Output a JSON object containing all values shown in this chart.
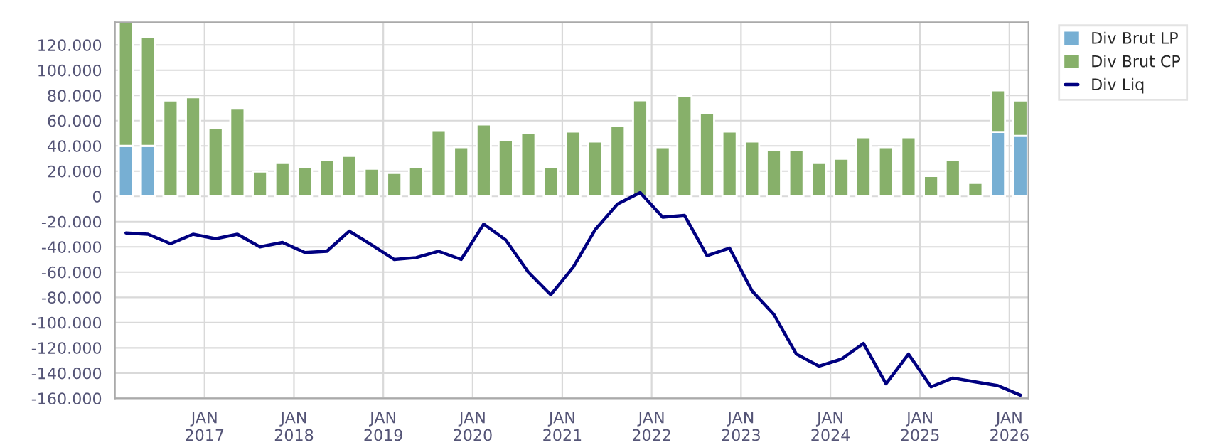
{
  "chart_data": {
    "type": "bar",
    "stacked": true,
    "x": [
      "2016-02-15",
      "2016-05-15",
      "2016-08-15",
      "2016-11-15",
      "2017-02-15",
      "2017-05-15",
      "2017-08-15",
      "2017-11-15",
      "2018-02-15",
      "2018-05-15",
      "2018-08-15",
      "2018-11-15",
      "2019-02-15",
      "2019-05-15",
      "2019-08-15",
      "2019-11-15",
      "2020-02-15",
      "2020-05-15",
      "2020-08-15",
      "2020-11-15",
      "2021-02-15",
      "2021-05-15",
      "2021-08-15",
      "2021-11-15",
      "2022-02-15",
      "2022-05-15",
      "2022-08-15",
      "2022-11-15",
      "2023-02-15",
      "2023-05-15",
      "2023-08-15",
      "2023-11-15",
      "2024-02-15",
      "2024-05-15",
      "2024-08-15",
      "2024-11-15",
      "2025-02-15",
      "2025-05-15",
      "2025-08-15",
      "2025-11-15",
      "2026-02-15"
    ],
    "series": [
      {
        "name": "Div Brut LP",
        "color": "#77afd3",
        "values": [
          40000,
          40000,
          0,
          0,
          0,
          0,
          0,
          0,
          0,
          0,
          0,
          0,
          0,
          0,
          0,
          0,
          0,
          0,
          0,
          0,
          0,
          0,
          0,
          0,
          0,
          0,
          0,
          0,
          0,
          0,
          0,
          0,
          0,
          0,
          0,
          0,
          0,
          0,
          0,
          51000,
          48000
        ]
      },
      {
        "name": "Div Brut CP",
        "color": "#87b06a",
        "values": [
          98000,
          86000,
          76000,
          78500,
          54000,
          69500,
          19600,
          26400,
          23000,
          28700,
          32000,
          21900,
          18500,
          23000,
          52500,
          38900,
          57000,
          44500,
          50200,
          23000,
          51300,
          43400,
          55800,
          76200,
          38900,
          79600,
          66000,
          51300,
          43400,
          36600,
          36600,
          26400,
          29800,
          46800,
          38900,
          46800,
          16200,
          28700,
          10600,
          33000,
          28000
        ]
      },
      {
        "name": "Div Liq",
        "type": "line",
        "color": "#000080",
        "values": [
          -29000,
          -30000,
          -37500,
          -30000,
          -33500,
          -30000,
          -40000,
          -36500,
          -44500,
          -43500,
          -27500,
          -38500,
          -50000,
          -48500,
          -43500,
          -50000,
          -22000,
          -34500,
          -60000,
          -78000,
          -56000,
          -26500,
          -6000,
          3000,
          -16500,
          -15000,
          -47000,
          -41000,
          -75000,
          -93500,
          -125000,
          -134500,
          -129000,
          -116500,
          -148500,
          -125000,
          -151000,
          -144000,
          -147000,
          -150000,
          -157500
        ]
      }
    ],
    "xlim": [
      "2016-01-01",
      "2026-03-20"
    ],
    "xticks": [
      {
        "value": "2017-01-01",
        "label": "JAN\n2017"
      },
      {
        "value": "2018-01-01",
        "label": "JAN\n2018"
      },
      {
        "value": "2019-01-01",
        "label": "JAN\n2019"
      },
      {
        "value": "2020-01-01",
        "label": "JAN\n2020"
      },
      {
        "value": "2021-01-01",
        "label": "JAN\n2021"
      },
      {
        "value": "2022-01-01",
        "label": "JAN\n2022"
      },
      {
        "value": "2023-01-01",
        "label": "JAN\n2023"
      },
      {
        "value": "2024-01-01",
        "label": "JAN\n2024"
      },
      {
        "value": "2025-01-01",
        "label": "JAN\n2025"
      },
      {
        "value": "2026-01-01",
        "label": "JAN\n2026"
      }
    ],
    "ylim": [
      -160000,
      138000
    ],
    "yticks": [
      {
        "value": -160000,
        "label": "-160.000"
      },
      {
        "value": -140000,
        "label": "-140.000"
      },
      {
        "value": -120000,
        "label": "-120.000"
      },
      {
        "value": -100000,
        "label": "-100.000"
      },
      {
        "value": -80000,
        "label": "-80.000"
      },
      {
        "value": -60000,
        "label": "-60.000"
      },
      {
        "value": -40000,
        "label": "-40.000"
      },
      {
        "value": -20000,
        "label": "-20.000"
      },
      0,
      {
        "value": 20000,
        "label": "20.000"
      },
      {
        "value": 40000,
        "label": "40.000"
      },
      {
        "value": 60000,
        "label": "60.000"
      },
      {
        "value": 80000,
        "label": "80.000"
      },
      {
        "value": 100000,
        "label": "100.000"
      },
      {
        "value": 120000,
        "label": "120.000"
      }
    ],
    "grid": true,
    "legend": "top right"
  }
}
